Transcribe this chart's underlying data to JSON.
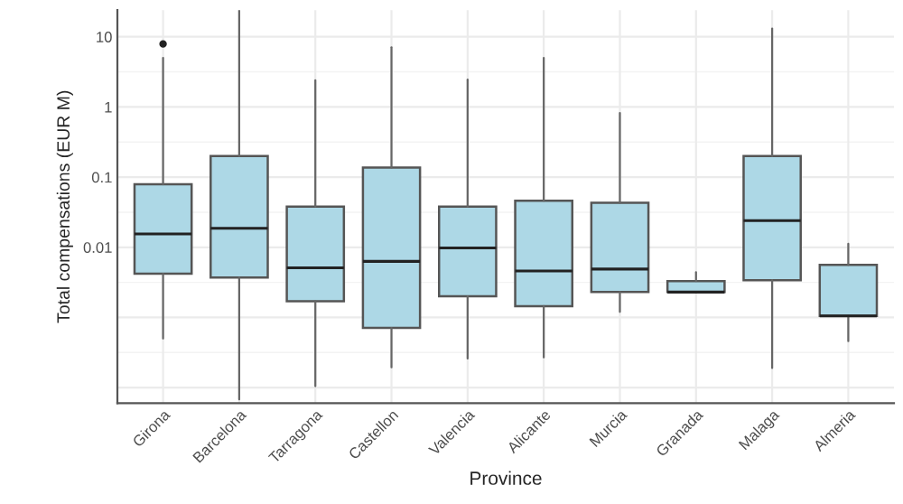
{
  "chart_data": {
    "type": "box",
    "xlabel": "Province",
    "ylabel": "Total compensations (EUR M)",
    "categories": [
      "Girona",
      "Barcelona",
      "Tarragona",
      "Castellon",
      "Valencia",
      "Alicante",
      "Murcia",
      "Granada",
      "Malaga",
      "Almeria"
    ],
    "boxes": [
      {
        "low": 0.0005,
        "q1": 0.0042,
        "median": 0.0155,
        "q3": 0.079,
        "high": 5.0,
        "outliers": [
          7.9
        ]
      },
      {
        "low": 6.8e-05,
        "q1": 0.0037,
        "median": 0.0186,
        "q3": 0.2,
        "high": 24
      },
      {
        "low": 0.000105,
        "q1": 0.0017,
        "median": 0.0051,
        "q3": 0.038,
        "high": 2.4
      },
      {
        "low": 0.000195,
        "q1": 0.00071,
        "median": 0.0063,
        "q3": 0.137,
        "high": 7.1
      },
      {
        "low": 0.00026,
        "q1": 0.002,
        "median": 0.0098,
        "q3": 0.038,
        "high": 2.45
      },
      {
        "low": 0.00027,
        "q1": 0.00145,
        "median": 0.0046,
        "q3": 0.046,
        "high": 5.0
      },
      {
        "low": 0.0012,
        "q1": 0.0023,
        "median": 0.0049,
        "q3": 0.043,
        "high": 0.82
      },
      {
        "low": 0.0023,
        "q1": 0.0023,
        "median": 0.0023,
        "q3": 0.0033,
        "high": 0.0044
      },
      {
        "low": 0.00019,
        "q1": 0.0034,
        "median": 0.024,
        "q3": 0.2,
        "high": 13.1
      },
      {
        "low": 0.00046,
        "q1": 0.00105,
        "median": 0.00105,
        "q3": 0.0056,
        "high": 0.0112
      }
    ],
    "color": "#add8e6",
    "log": "y",
    "ylim": [
      6e-05,
      24
    ],
    "yticks": [
      {
        "value": 0.0001,
        "label": null
      },
      {
        "value": 0.001,
        "label": null
      },
      0.01,
      0.1,
      1,
      10
    ],
    "grid": true
  }
}
